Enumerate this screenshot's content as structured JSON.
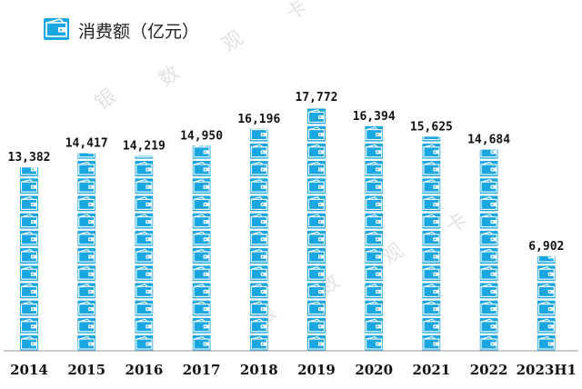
{
  "header": {
    "title": "消费额（亿元）",
    "icon": "wallet-icon"
  },
  "watermark": [
    "银",
    "数",
    "观",
    "卡"
  ],
  "colors": {
    "bar": "#1aa6e0",
    "bar_stripe": "#ffffff",
    "axis": "#9a9a9a",
    "label": "#111111"
  },
  "chart_data": {
    "type": "bar",
    "title": "消费额（亿元）",
    "xlabel": "",
    "ylabel": "",
    "categories": [
      "2014",
      "2015",
      "2016",
      "2017",
      "2018",
      "2019",
      "2020",
      "2021",
      "2022",
      "2023H1"
    ],
    "values": [
      13382,
      14417,
      14219,
      14950,
      16196,
      17772,
      16394,
      15625,
      14684,
      6902
    ],
    "value_labels": [
      "13,382",
      "14,417",
      "14,219",
      "14,950",
      "16,196",
      "17,772",
      "16,394",
      "15,625",
      "14,684",
      "6,902"
    ],
    "ylim": [
      0,
      20000
    ],
    "grid": false,
    "legend": "none"
  }
}
